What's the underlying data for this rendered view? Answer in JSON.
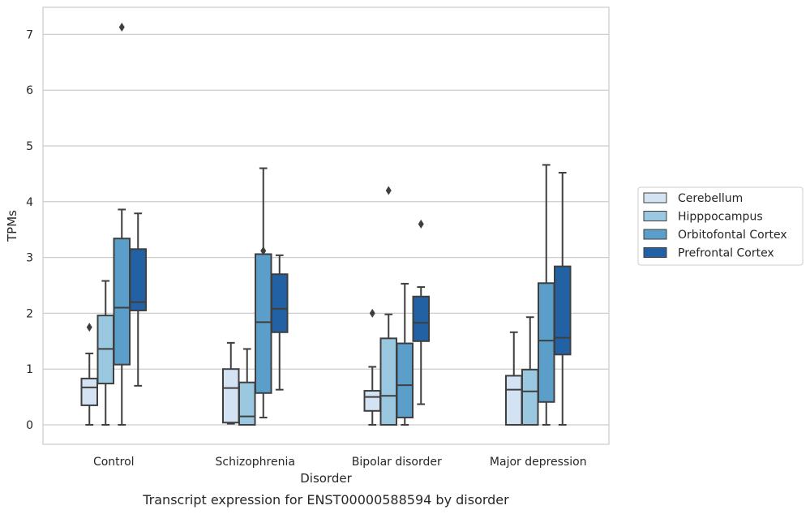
{
  "chart_data": {
    "type": "box",
    "title": "",
    "caption": "Transcript expression for ENST00000588594 by disorder",
    "xlabel": "Disorder",
    "ylabel": "TPMs",
    "ylim": [
      -0.35,
      7.5
    ],
    "yticks": [
      0,
      1,
      2,
      3,
      4,
      5,
      6,
      7
    ],
    "grid": "horizontal",
    "legend_position": "right",
    "categories": [
      "Control",
      "Schizophrenia",
      "Bipolar disorder",
      "Major depression"
    ],
    "series": [
      {
        "name": "Cerebellum",
        "color": "#d3e3f3",
        "boxes": [
          {
            "whislo": 0.0,
            "q1": 0.35,
            "median": 0.67,
            "q3": 0.83,
            "whishi": 1.28,
            "fliers": [
              1.75
            ]
          },
          {
            "whislo": 0.02,
            "q1": 0.04,
            "median": 0.66,
            "q3": 1.0,
            "whishi": 1.47,
            "fliers": []
          },
          {
            "whislo": 0.0,
            "q1": 0.25,
            "median": 0.5,
            "q3": 0.61,
            "whishi": 1.04,
            "fliers": [
              2.0
            ]
          },
          {
            "whislo": 0.0,
            "q1": 0.0,
            "median": 0.63,
            "q3": 0.88,
            "whishi": 1.66,
            "fliers": []
          }
        ]
      },
      {
        "name": "Hipppocampus",
        "color": "#9ac8e0",
        "boxes": [
          {
            "whislo": 0.0,
            "q1": 0.74,
            "median": 1.36,
            "q3": 1.96,
            "whishi": 2.58,
            "fliers": []
          },
          {
            "whislo": 0.0,
            "q1": 0.0,
            "median": 0.15,
            "q3": 0.76,
            "whishi": 1.36,
            "fliers": []
          },
          {
            "whislo": 0.0,
            "q1": 0.0,
            "median": 0.52,
            "q3": 1.55,
            "whishi": 1.98,
            "fliers": [
              4.2
            ]
          },
          {
            "whislo": 0.0,
            "q1": 0.0,
            "median": 0.6,
            "q3": 0.99,
            "whishi": 1.93,
            "fliers": []
          }
        ]
      },
      {
        "name": "Orbitofontal Cortex",
        "color": "#5a9ec9",
        "boxes": [
          {
            "whislo": 0.0,
            "q1": 1.08,
            "median": 2.1,
            "q3": 3.34,
            "whishi": 3.86,
            "fliers": [
              7.13
            ]
          },
          {
            "whislo": 0.13,
            "q1": 0.57,
            "median": 1.84,
            "q3": 3.06,
            "whishi": 4.6,
            "fliers": [
              3.12
            ]
          },
          {
            "whislo": 0.0,
            "q1": 0.13,
            "median": 0.71,
            "q3": 1.46,
            "whishi": 2.53,
            "fliers": []
          },
          {
            "whislo": 0.0,
            "q1": 0.41,
            "median": 1.51,
            "q3": 2.54,
            "whishi": 4.66,
            "fliers": []
          }
        ]
      },
      {
        "name": "Prefrontal Cortex",
        "color": "#2361a5",
        "boxes": [
          {
            "whislo": 0.7,
            "q1": 2.05,
            "median": 2.2,
            "q3": 3.15,
            "whishi": 3.79,
            "fliers": []
          },
          {
            "whislo": 0.63,
            "q1": 1.66,
            "median": 2.08,
            "q3": 2.7,
            "whishi": 3.04,
            "fliers": []
          },
          {
            "whislo": 0.37,
            "q1": 1.5,
            "median": 1.83,
            "q3": 2.3,
            "whishi": 2.47,
            "fliers": [
              3.6
            ]
          },
          {
            "whislo": 0.0,
            "q1": 1.26,
            "median": 1.56,
            "q3": 2.84,
            "whishi": 4.52,
            "fliers": []
          }
        ]
      }
    ]
  }
}
